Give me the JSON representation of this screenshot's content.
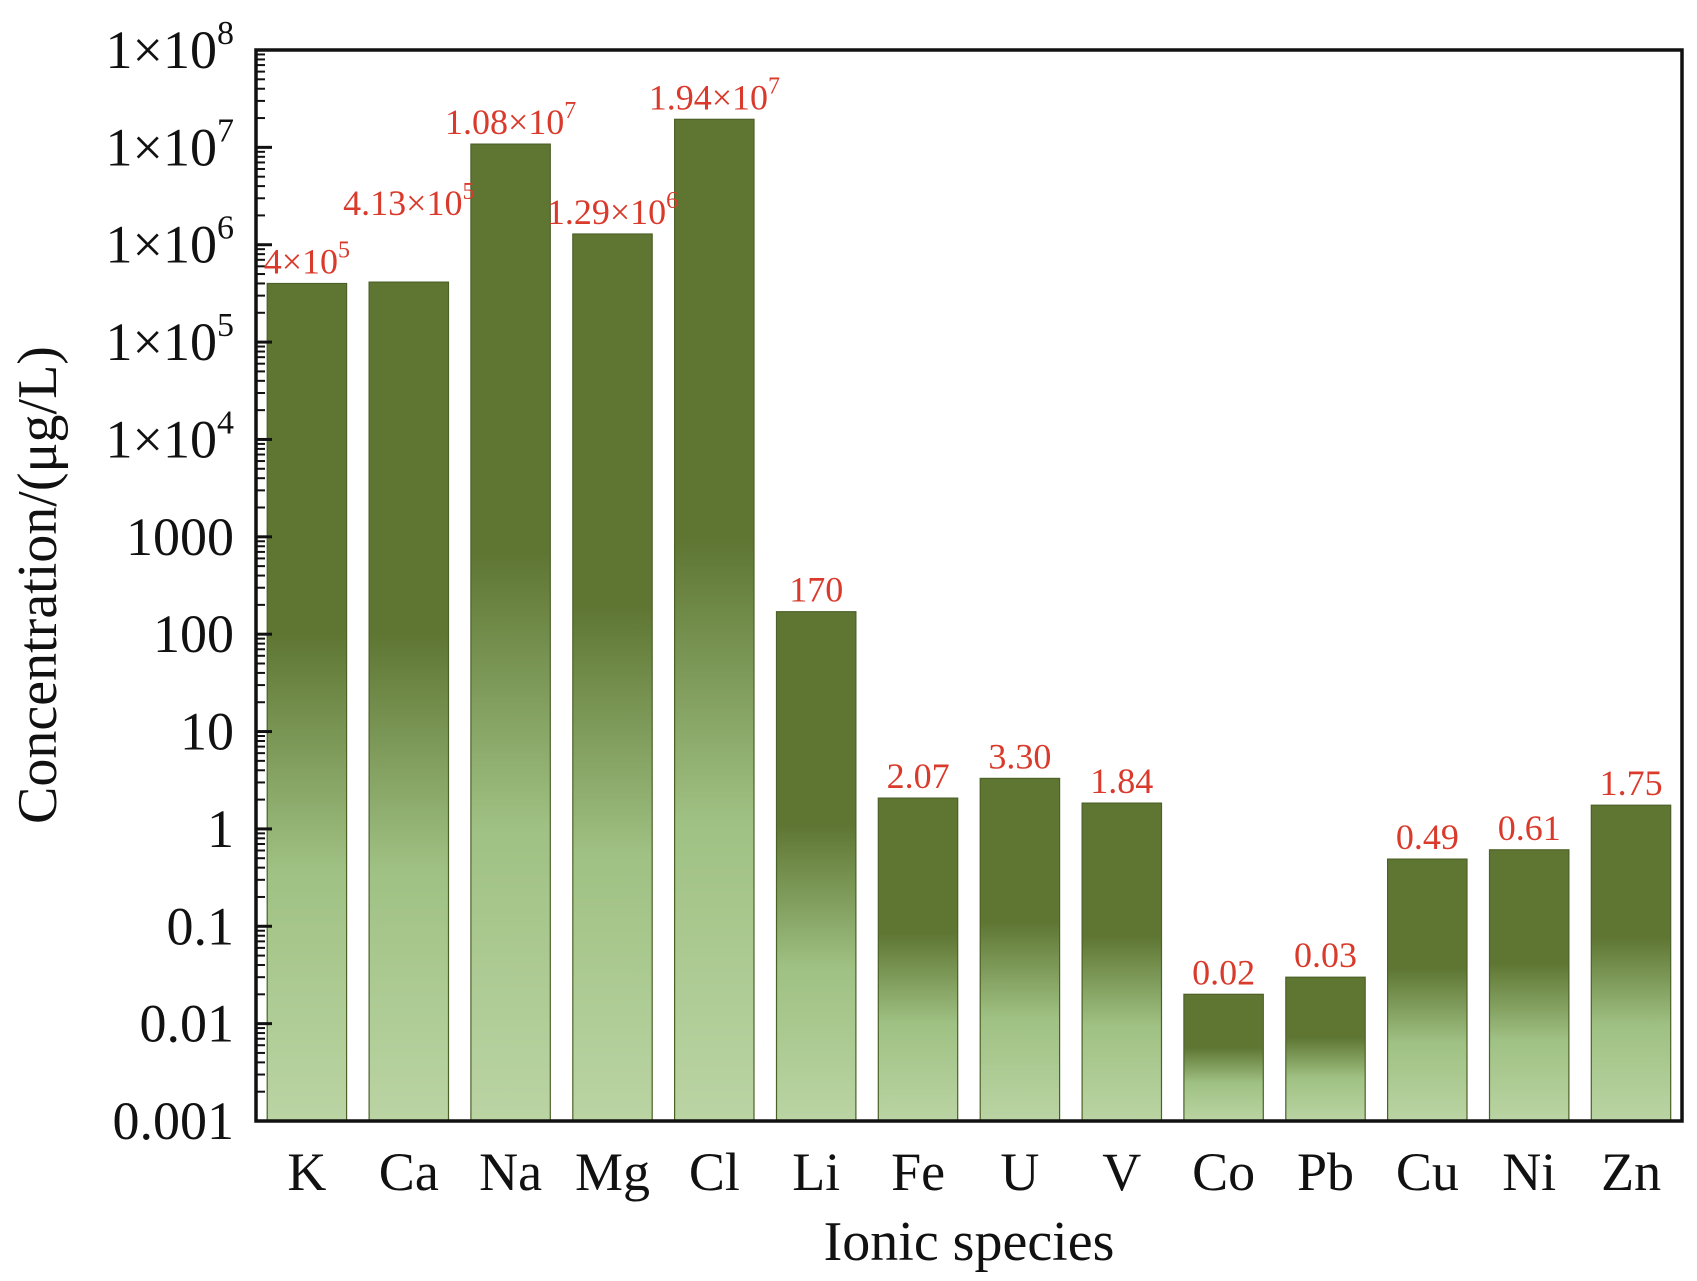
{
  "chart_data": {
    "type": "bar",
    "xlabel": "Ionic species",
    "ylabel": "Concentration/(μg/L)",
    "yscale": "log",
    "ylim": [
      0.001,
      100000000
    ],
    "categories": [
      "K",
      "Ca",
      "Na",
      "Mg",
      "Cl",
      "Li",
      "Fe",
      "U",
      "V",
      "Co",
      "Pb",
      "Cu",
      "Ni",
      "Zn"
    ],
    "values": [
      400000,
      413000,
      10800000,
      1290000,
      19400000,
      170,
      2.07,
      3.3,
      1.84,
      0.02,
      0.03,
      0.49,
      0.61,
      1.75
    ],
    "data_labels": [
      {
        "mantissa": "4",
        "times": "×10",
        "exp": "5"
      },
      {
        "mantissa": "4.13",
        "times": "×10",
        "exp": "5"
      },
      {
        "mantissa": "1.08",
        "times": "×10",
        "exp": "7"
      },
      {
        "mantissa": "1.29",
        "times": "×10",
        "exp": "6"
      },
      {
        "mantissa": "1.94",
        "times": "×10",
        "exp": "7"
      },
      {
        "mantissa": "170",
        "times": "",
        "exp": ""
      },
      {
        "mantissa": "2.07",
        "times": "",
        "exp": ""
      },
      {
        "mantissa": "3.30",
        "times": "",
        "exp": ""
      },
      {
        "mantissa": "1.84",
        "times": "",
        "exp": ""
      },
      {
        "mantissa": "0.02",
        "times": "",
        "exp": ""
      },
      {
        "mantissa": "0.03",
        "times": "",
        "exp": ""
      },
      {
        "mantissa": "0.49",
        "times": "",
        "exp": ""
      },
      {
        "mantissa": "0.61",
        "times": "",
        "exp": ""
      },
      {
        "mantissa": "1.75",
        "times": "",
        "exp": ""
      }
    ],
    "yticks": [
      {
        "value": 0.001,
        "base": "0.001",
        "exp": ""
      },
      {
        "value": 0.01,
        "base": "0.01",
        "exp": ""
      },
      {
        "value": 0.1,
        "base": "0.1",
        "exp": ""
      },
      {
        "value": 1,
        "base": "1",
        "exp": ""
      },
      {
        "value": 10,
        "base": "10",
        "exp": ""
      },
      {
        "value": 100,
        "base": "100",
        "exp": ""
      },
      {
        "value": 1000,
        "base": "1000",
        "exp": ""
      },
      {
        "value": 10000,
        "base": "1×10",
        "exp": "4"
      },
      {
        "value": 100000,
        "base": "1×10",
        "exp": "5"
      },
      {
        "value": 1000000,
        "base": "1×10",
        "exp": "6"
      },
      {
        "value": 10000000,
        "base": "1×10",
        "exp": "7"
      },
      {
        "value": 100000000,
        "base": "1×10",
        "exp": "8"
      }
    ],
    "grid": false,
    "colors": {
      "bar_dark": "#5f7633",
      "bar_light": "#b9d4a1",
      "data_label": "#d93a2b",
      "axis": "#111111"
    }
  }
}
